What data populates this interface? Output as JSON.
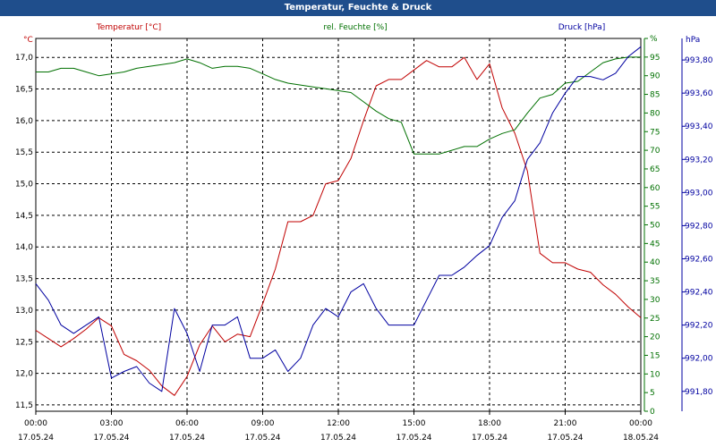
{
  "window": {
    "title": "Temperatur, Feuchte & Druck"
  },
  "colors": {
    "titlebar": "#1f4e8c",
    "temperature": "#c00000",
    "humidity": "#007000",
    "pressure": "#0000a0",
    "grid": "#000000"
  },
  "chart_data": {
    "type": "line",
    "title": "Temperatur, Feuchte & Druck",
    "grid": true,
    "x": {
      "range_hours": [
        0,
        24
      ],
      "tick_hours": [
        0,
        3,
        6,
        9,
        12,
        15,
        18,
        21,
        24
      ],
      "tick_times": [
        "00:00",
        "03:00",
        "06:00",
        "09:00",
        "12:00",
        "15:00",
        "18:00",
        "21:00",
        "00:00"
      ],
      "tick_dates": [
        "17.05.24",
        "17.05.24",
        "17.05.24",
        "17.05.24",
        "17.05.24",
        "17.05.24",
        "17.05.24",
        "17.05.24",
        "18.05.24"
      ]
    },
    "axes": {
      "temperature": {
        "label": "Temperatur [°C]",
        "unit": "°C",
        "range": [
          11.4,
          17.3
        ],
        "ticks": [
          17.0,
          16.5,
          16.0,
          15.5,
          15.0,
          14.5,
          14.0,
          13.5,
          13.0,
          12.5,
          12.0,
          11.5
        ],
        "tick_labels": [
          "17,0",
          "16,5",
          "16,0",
          "15,5",
          "15,0",
          "14,5",
          "14,0",
          "13,5",
          "13,0",
          "12,5",
          "12,0",
          "11,5"
        ]
      },
      "humidity": {
        "label": "rel. Feuchte [%]",
        "unit": "%",
        "range": [
          0,
          100
        ],
        "ticks": [
          100,
          95,
          90,
          85,
          80,
          75,
          70,
          65,
          60,
          55,
          50,
          45,
          40,
          35,
          30,
          25,
          20,
          15,
          10,
          5,
          0
        ],
        "tick_labels": [
          "%",
          "95",
          "90",
          "85",
          "80",
          "75",
          "70",
          "65",
          "60",
          "55",
          "50",
          "45",
          "40",
          "35",
          "30",
          "25",
          "20",
          "15",
          "10",
          "5",
          "0"
        ]
      },
      "pressure": {
        "label": "Druck [hPa]",
        "unit": "hPa",
        "range": [
          991.68,
          993.93
        ],
        "ticks": [
          993.8,
          993.6,
          993.4,
          993.2,
          993.0,
          992.8,
          992.6,
          992.4,
          992.2,
          992.0,
          991.8
        ],
        "tick_labels": [
          "993,80",
          "993,60",
          "993,40",
          "993,20",
          "993,00",
          "992,80",
          "992,60",
          "992,40",
          "992,20",
          "992,00",
          "991,80"
        ]
      }
    },
    "series": [
      {
        "name": "Temperatur [°C]",
        "axis": "temperature",
        "color": "#c00000",
        "x": [
          0,
          0.5,
          1,
          1.5,
          2,
          2.5,
          3,
          3.5,
          4,
          4.5,
          5,
          5.5,
          6,
          6.5,
          7,
          7.5,
          8,
          8.5,
          9,
          9.5,
          10,
          10.5,
          11,
          11.5,
          12,
          12.5,
          13,
          13.5,
          14,
          14.5,
          15,
          15.5,
          16,
          16.5,
          17,
          17.5,
          18,
          18.5,
          19,
          19.5,
          20,
          20.5,
          21,
          21.5,
          22,
          22.5,
          23,
          23.5,
          24
        ],
        "values": [
          12.68,
          12.55,
          12.42,
          12.55,
          12.7,
          12.88,
          12.75,
          12.3,
          12.2,
          12.05,
          11.8,
          11.65,
          11.95,
          12.45,
          12.75,
          12.5,
          12.62,
          12.58,
          13.1,
          13.65,
          14.4,
          14.4,
          14.5,
          15.0,
          15.05,
          15.4,
          16.0,
          16.55,
          16.65,
          16.65,
          16.8,
          16.95,
          16.85,
          16.85,
          17.0,
          16.65,
          16.9,
          16.2,
          15.8,
          15.2,
          13.9,
          13.75,
          13.75,
          13.65,
          13.6,
          13.4,
          13.25,
          13.05,
          12.88
        ]
      },
      {
        "name": "rel. Feuchte [%]",
        "axis": "humidity",
        "color": "#007000",
        "x": [
          0,
          0.5,
          1,
          1.5,
          2,
          2.5,
          3,
          3.5,
          4,
          4.5,
          5,
          5.5,
          6,
          6.5,
          7,
          7.5,
          8,
          8.5,
          9,
          9.5,
          10,
          10.5,
          11,
          11.5,
          12,
          12.5,
          13,
          13.5,
          14,
          14.5,
          15,
          15.5,
          16,
          16.5,
          17,
          17.5,
          18,
          18.5,
          19,
          19.5,
          20,
          20.5,
          21,
          21.5,
          22,
          22.5,
          23,
          23.5,
          24
        ],
        "values": [
          91,
          91,
          92,
          92,
          91,
          90,
          90.5,
          91,
          92,
          92.5,
          93,
          93.5,
          94.5,
          93.5,
          92,
          92.5,
          92.5,
          92,
          90.5,
          89,
          88,
          87.5,
          87,
          86.5,
          86,
          85.5,
          83,
          80.5,
          78.5,
          77.5,
          69,
          69,
          69,
          70,
          71,
          71,
          73,
          74.5,
          75.5,
          80,
          84,
          85,
          88,
          88.5,
          91,
          93.5,
          94.5,
          95,
          95
        ]
      },
      {
        "name": "Druck [hPa]",
        "axis": "pressure",
        "color": "#0000a0",
        "x": [
          0,
          0.5,
          1,
          1.5,
          2,
          2.5,
          3,
          3.5,
          4,
          4.5,
          5,
          5.5,
          6,
          6.5,
          7,
          7.5,
          8,
          8.5,
          9,
          9.5,
          10,
          10.5,
          11,
          11.5,
          12,
          12.5,
          13,
          13.5,
          14,
          14.5,
          15,
          15.5,
          16,
          16.5,
          17,
          17.5,
          18,
          18.5,
          19,
          19.5,
          20,
          20.5,
          21,
          21.5,
          22,
          22.5,
          23,
          23.5,
          24
        ],
        "values": [
          992.45,
          992.35,
          992.2,
          992.15,
          992.2,
          992.25,
          991.88,
          991.92,
          991.95,
          991.85,
          991.8,
          992.3,
          992.15,
          991.92,
          992.2,
          992.2,
          992.25,
          992.0,
          992.0,
          992.05,
          991.92,
          992.0,
          992.2,
          992.3,
          992.25,
          992.4,
          992.45,
          992.3,
          992.2,
          992.2,
          992.2,
          992.35,
          992.5,
          992.5,
          992.55,
          992.62,
          992.68,
          992.85,
          992.95,
          993.2,
          993.3,
          993.48,
          993.6,
          993.7,
          993.7,
          993.68,
          993.72,
          993.82,
          993.88
        ]
      }
    ]
  }
}
